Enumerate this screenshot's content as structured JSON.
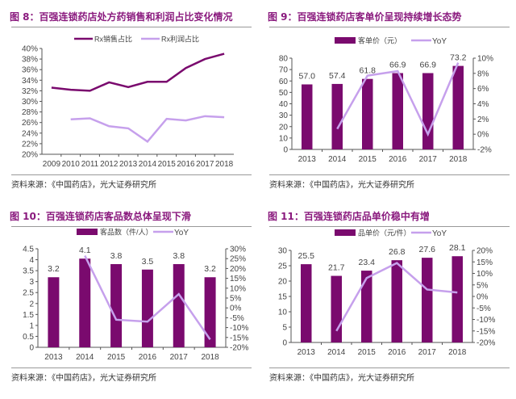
{
  "colors": {
    "bar": "#7a0a6e",
    "line_dark": "#7a0a6e",
    "line_light": "#c6a0ec",
    "title": "#8a1a7e"
  },
  "source": "资料来源：《中国药店》，光大证券研究所",
  "chart_data": [
    {
      "type": "line",
      "title": "图 8：百强连锁药店处方药销售和利润占比变化情况",
      "categories": [
        "2009",
        "2010",
        "2011",
        "2012",
        "2013",
        "2014",
        "2015",
        "2016",
        "2017",
        "2018"
      ],
      "series": [
        {
          "name": "Rx销售占比",
          "values": [
            32.6,
            32.2,
            32.0,
            33.6,
            32.7,
            33.7,
            33.7,
            36.3,
            38.0,
            39.0
          ]
        },
        {
          "name": "Rx利润占比",
          "values": [
            null,
            26.6,
            26.8,
            25.3,
            24.9,
            22.4,
            26.7,
            26.4,
            27.2,
            27.0
          ]
        }
      ],
      "ylim": [
        20,
        40
      ],
      "yticks": [
        "20%",
        "22%",
        "24%",
        "26%",
        "28%",
        "30%",
        "32%",
        "34%",
        "36%",
        "38%",
        "40%"
      ],
      "legend": "top"
    },
    {
      "type": "bar+line",
      "title": "图 9：百强连锁药店客单价呈现持续增长态势",
      "categories": [
        "2013",
        "2014",
        "2015",
        "2016",
        "2017",
        "2018"
      ],
      "bar": {
        "name": "客单价（元）",
        "values": [
          57.0,
          57.4,
          61.8,
          66.9,
          66.9,
          73.2
        ],
        "labels": [
          "57.0",
          "57.4",
          "61.8",
          "66.9",
          "66.9",
          "73.2"
        ]
      },
      "line": {
        "name": "YoY",
        "values": [
          null,
          0.7,
          7.7,
          8.3,
          0.0,
          9.4
        ]
      },
      "ylim": [
        0,
        80
      ],
      "yticks": [
        "0",
        "10",
        "20",
        "30",
        "40",
        "50",
        "60",
        "70",
        "80"
      ],
      "y2lim": [
        -2,
        10
      ],
      "y2ticks": [
        "-2%",
        "0%",
        "2%",
        "4%",
        "6%",
        "8%",
        "10%"
      ],
      "legend": "top"
    },
    {
      "type": "bar+line",
      "title": "图 10：百强连锁药店客品数总体呈现下滑",
      "categories": [
        "2013",
        "2014",
        "2015",
        "2016",
        "2017",
        "2018"
      ],
      "bar": {
        "name": "客品数（件/人）",
        "values": [
          3.2,
          4.05,
          3.8,
          3.55,
          3.8,
          3.2
        ],
        "labels": [
          "3.2",
          "4.1",
          "3.8",
          "3.5",
          "3.8",
          "3.2"
        ]
      },
      "line": {
        "name": "YoY",
        "values": [
          null,
          26.5,
          -6,
          -7,
          7,
          -16
        ]
      },
      "ylim": [
        0,
        4.5
      ],
      "yticks": [
        "0",
        "0.5",
        "1",
        "1.5",
        "2",
        "2.5",
        "3",
        "3.5",
        "4",
        "4.5"
      ],
      "y2lim": [
        -20,
        30
      ],
      "y2ticks": [
        "-20%",
        "-15%",
        "-10%",
        "-5%",
        "0%",
        "5%",
        "10%",
        "15%",
        "20%",
        "25%",
        "30%"
      ],
      "legend": "top"
    },
    {
      "type": "bar+line",
      "title": "图 11：百强连锁药店品单价稳中有增",
      "categories": [
        "2013",
        "2014",
        "2015",
        "2016",
        "2017",
        "2018"
      ],
      "bar": {
        "name": "品单价（元/件）",
        "values": [
          25.5,
          21.7,
          23.4,
          26.8,
          27.6,
          28.1
        ],
        "labels": [
          "25.5",
          "21.7",
          "23.4",
          "26.8",
          "27.6",
          "28.1"
        ]
      },
      "line": {
        "name": "YoY",
        "values": [
          null,
          -15,
          8,
          14.5,
          3,
          1.7
        ]
      },
      "ylim": [
        0,
        30
      ],
      "yticks": [
        "0",
        "5",
        "10",
        "15",
        "20",
        "25",
        "30"
      ],
      "y2lim": [
        -20,
        20
      ],
      "y2ticks": [
        "-20%",
        "-15%",
        "-10%",
        "-5%",
        "0%",
        "5%",
        "10%",
        "15%",
        "20%"
      ],
      "legend": "top"
    }
  ]
}
